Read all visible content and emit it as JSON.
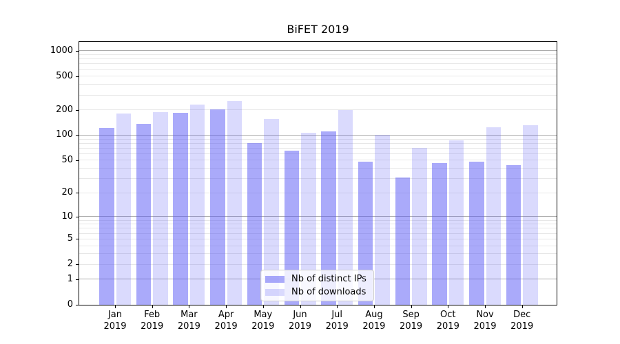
{
  "chart_data": {
    "type": "bar",
    "title": "BiFET 2019",
    "categories": [
      "Jan 2019",
      "Feb 2019",
      "Mar 2019",
      "Apr 2019",
      "May 2019",
      "Jun 2019",
      "Jul 2019",
      "Aug 2019",
      "Sep 2019",
      "Oct 2019",
      "Nov 2019",
      "Dec 2019"
    ],
    "series": [
      {
        "name": "Nb of distinct IPs",
        "color": "rgba(85,85,245,0.5)",
        "values": [
          122,
          136,
          184,
          201,
          81,
          65,
          111,
          48,
          31,
          46,
          48,
          44
        ]
      },
      {
        "name": "Nb of downloads",
        "color": "rgba(85,85,245,0.22)",
        "values": [
          181,
          187,
          230,
          252,
          155,
          107,
          198,
          100,
          71,
          87,
          124,
          131
        ]
      }
    ],
    "xlabel": "",
    "ylabel": "",
    "yscale": "log1p",
    "yticks": [
      0,
      1,
      2,
      5,
      10,
      20,
      50,
      100,
      200,
      500,
      1000
    ],
    "ylim": [
      0,
      1275
    ],
    "grid": {
      "orientation": "horizontal",
      "major_color": "#aaaaaa",
      "minor_color": "#e7e7e7"
    },
    "legend": {
      "position": "lower center",
      "frame_color": "#cccccc"
    },
    "frame_color": "#000000",
    "background": "#ffffff"
  }
}
